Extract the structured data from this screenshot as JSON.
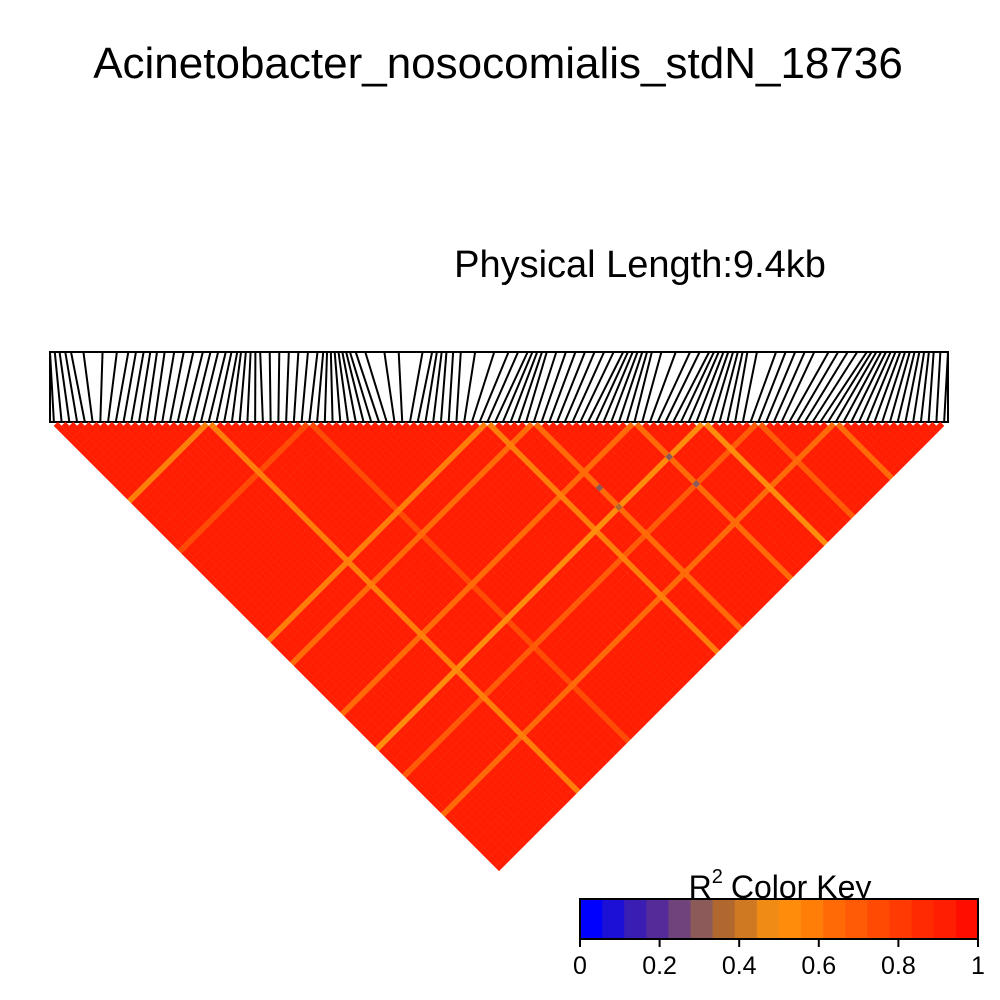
{
  "chart_data": {
    "type": "heatmap",
    "title": "Acinetobacter_nosocomialis_stdN_18736",
    "subtitle": "Physical Length:9.4kb",
    "n_markers": 116,
    "base_r2": 0.92,
    "marker_positions_kb": [
      0.0,
      0.05,
      0.1,
      0.16,
      0.22,
      0.35,
      0.55,
      0.7,
      0.82,
      0.9,
      0.98,
      1.05,
      1.12,
      1.2,
      1.3,
      1.4,
      1.5,
      1.6,
      1.68,
      1.76,
      1.84,
      1.9,
      1.96,
      2.0,
      2.05,
      2.1,
      2.15,
      2.2,
      2.3,
      2.4,
      2.5,
      2.6,
      2.7,
      2.8,
      2.86,
      2.9,
      2.94,
      2.98,
      3.02,
      3.06,
      3.1,
      3.14,
      3.2,
      3.3,
      3.5,
      3.65,
      3.9,
      4.0,
      4.05,
      4.1,
      4.15,
      4.22,
      4.3,
      4.45,
      4.65,
      4.8,
      4.9,
      5.0,
      5.05,
      5.1,
      5.15,
      5.2,
      5.3,
      5.4,
      5.5,
      5.6,
      5.7,
      5.8,
      5.9,
      6.0,
      6.05,
      6.1,
      6.15,
      6.2,
      6.25,
      6.3,
      6.4,
      6.55,
      6.7,
      6.8,
      6.9,
      6.95,
      7.0,
      7.05,
      7.1,
      7.15,
      7.2,
      7.25,
      7.3,
      7.4,
      7.6,
      7.7,
      7.8,
      7.9,
      8.0,
      8.15,
      8.25,
      8.35,
      8.45,
      8.55,
      8.6,
      8.65,
      8.7,
      8.75,
      8.8,
      8.85,
      8.9,
      8.95,
      9.0,
      9.05,
      9.1,
      9.15,
      9.2,
      9.25,
      9.32,
      9.4
    ],
    "highlighted_markers": [
      {
        "index": 20,
        "r2": 0.6
      },
      {
        "index": 33,
        "r2": 0.78
      },
      {
        "index": 56,
        "r2": 0.58
      },
      {
        "index": 62,
        "r2": 0.62
      },
      {
        "index": 75,
        "r2": 0.65
      },
      {
        "index": 84,
        "r2": 0.55
      },
      {
        "index": 91,
        "r2": 0.7
      },
      {
        "index": 101,
        "r2": 0.66
      }
    ],
    "low_pairs": [
      {
        "i": 62,
        "j": 79,
        "r2": 0.3
      },
      {
        "i": 62,
        "j": 84,
        "r2": 0.35
      },
      {
        "i": 75,
        "j": 91,
        "r2": 0.3
      },
      {
        "i": 75,
        "j": 84,
        "r2": 0.32
      }
    ],
    "color_key": {
      "label": "Color Key",
      "label_prefix": "R",
      "label_superscript": "2",
      "colors": [
        "#0000ff",
        "#1c10d6",
        "#3a1eb4",
        "#552a99",
        "#70437c",
        "#8c5b59",
        "#b0682f",
        "#cf7a22",
        "#f08c14",
        "#ff8c0a",
        "#ff7e08",
        "#ff6a06",
        "#ff5a05",
        "#ff4a04",
        "#ff3a03",
        "#ff2a02",
        "#ff1e01",
        "#ff0e00"
      ],
      "ticks": [
        "0",
        "0.2",
        "0.4",
        "0.6",
        "0.8",
        "1"
      ],
      "range": [
        0,
        1
      ]
    }
  }
}
